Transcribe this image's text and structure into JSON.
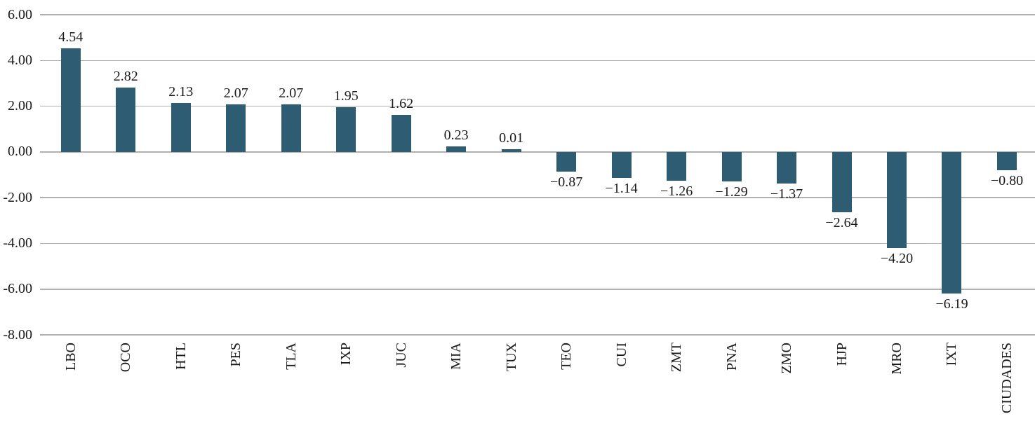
{
  "chart_data": {
    "type": "bar",
    "title": "",
    "xlabel": "",
    "ylabel": "",
    "categories": [
      "LBO",
      "OCO",
      "HTL",
      "PES",
      "TLA",
      "IXP",
      "JUC",
      "MIA",
      "TUX",
      "TEO",
      "CUI",
      "ZMT",
      "PNA",
      "ZMO",
      "HJP",
      "MRO",
      "IXT",
      "CIUDADES"
    ],
    "values": [
      4.54,
      2.82,
      2.13,
      2.07,
      2.07,
      1.95,
      1.62,
      0.23,
      0.01,
      -0.87,
      -1.14,
      -1.26,
      -1.29,
      -1.37,
      -2.64,
      -4.2,
      -6.19,
      -0.8
    ],
    "value_labels": [
      "4.54",
      "2.82",
      "2.13",
      "2.07",
      "2.07",
      "1.95",
      "1.62",
      "0.23",
      "0.01",
      "−0.87",
      "−1.14",
      "−1.26",
      "−1.29",
      "−1.37",
      "−2.64",
      "−4.20",
      "−6.19",
      "−0.80"
    ],
    "ylim": [
      -8,
      6
    ],
    "yticks": [
      {
        "value": 6,
        "label": "6.00"
      },
      {
        "value": 4,
        "label": "4.00"
      },
      {
        "value": 2,
        "label": "2.00"
      },
      {
        "value": 0,
        "label": "0.00"
      },
      {
        "value": -2,
        "label": "-2.00"
      },
      {
        "value": -4,
        "label": "-4.00"
      },
      {
        "value": -6,
        "label": "-6.00"
      },
      {
        "value": -8,
        "label": "-8.00"
      }
    ],
    "grid": true,
    "legend": false,
    "colors": {
      "bar": "#2E5C72",
      "gridline": "#B0B0B0",
      "text": "#1A1A1A"
    }
  }
}
